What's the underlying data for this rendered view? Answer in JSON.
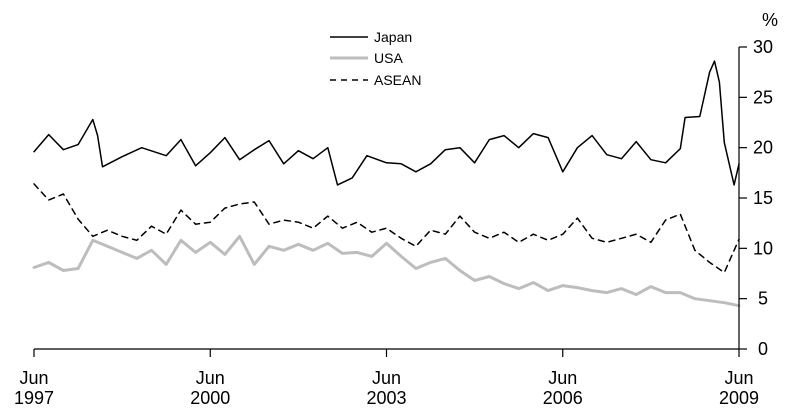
{
  "chart_data": {
    "type": "line",
    "title": "",
    "xlabel": "",
    "ylabel": "%",
    "ylim": [
      0,
      30
    ],
    "x_ticks": [
      {
        "date": "1997-06",
        "line1": "Jun",
        "line2": "1997"
      },
      {
        "date": "2000-06",
        "line1": "Jun",
        "line2": "2000"
      },
      {
        "date": "2003-06",
        "line1": "Jun",
        "line2": "2003"
      },
      {
        "date": "2006-06",
        "line1": "Jun",
        "line2": "2006"
      },
      {
        "date": "2009-06",
        "line1": "Jun",
        "line2": "2009"
      }
    ],
    "y_ticks": [
      "0",
      "5",
      "10",
      "15",
      "20",
      "25",
      "30"
    ],
    "x_start": "1997-06",
    "x_end": "2009-06",
    "grid": false,
    "legend_position": "top-center",
    "series": [
      {
        "name": "Japan",
        "style": "solid",
        "color": "#000000",
        "points": [
          [
            "1997-06",
            19.6
          ],
          [
            "1997-09",
            21.3
          ],
          [
            "1997-12",
            19.8
          ],
          [
            "1998-03",
            20.3
          ],
          [
            "1998-06",
            22.8
          ],
          [
            "1998-07",
            21.2
          ],
          [
            "1998-08",
            18.1
          ],
          [
            "1998-12",
            19.1
          ],
          [
            "1999-04",
            20.0
          ],
          [
            "1999-09",
            19.2
          ],
          [
            "1999-12",
            20.8
          ],
          [
            "2000-03",
            18.2
          ],
          [
            "2000-06",
            19.5
          ],
          [
            "2000-09",
            21.0
          ],
          [
            "2000-12",
            18.8
          ],
          [
            "2001-03",
            19.8
          ],
          [
            "2001-06",
            20.7
          ],
          [
            "2001-09",
            18.4
          ],
          [
            "2001-12",
            19.7
          ],
          [
            "2002-03",
            18.9
          ],
          [
            "2002-06",
            20.0
          ],
          [
            "2002-08",
            16.3
          ],
          [
            "2002-11",
            17.0
          ],
          [
            "2003-02",
            19.2
          ],
          [
            "2003-06",
            18.5
          ],
          [
            "2003-09",
            18.4
          ],
          [
            "2003-12",
            17.6
          ],
          [
            "2004-03",
            18.4
          ],
          [
            "2004-06",
            19.8
          ],
          [
            "2004-09",
            20.0
          ],
          [
            "2004-12",
            18.5
          ],
          [
            "2005-03",
            20.8
          ],
          [
            "2005-06",
            21.2
          ],
          [
            "2005-09",
            20.0
          ],
          [
            "2005-12",
            21.4
          ],
          [
            "2006-03",
            21.0
          ],
          [
            "2006-06",
            17.6
          ],
          [
            "2006-09",
            20.0
          ],
          [
            "2006-12",
            21.2
          ],
          [
            "2007-03",
            19.3
          ],
          [
            "2007-06",
            18.9
          ],
          [
            "2007-09",
            20.6
          ],
          [
            "2007-12",
            18.8
          ],
          [
            "2008-03",
            18.5
          ],
          [
            "2008-06",
            19.9
          ],
          [
            "2008-07",
            23.0
          ],
          [
            "2008-10",
            23.1
          ],
          [
            "2008-12",
            27.5
          ],
          [
            "2009-01",
            28.6
          ],
          [
            "2009-02",
            26.5
          ],
          [
            "2009-03",
            20.5
          ],
          [
            "2009-05",
            16.3
          ],
          [
            "2009-06",
            18.4
          ]
        ]
      },
      {
        "name": "USA",
        "style": "solid",
        "color": "#bdbdbd",
        "points": [
          [
            "1997-06",
            8.1
          ],
          [
            "1997-09",
            8.6
          ],
          [
            "1997-12",
            7.8
          ],
          [
            "1998-03",
            8.0
          ],
          [
            "1998-06",
            10.8
          ],
          [
            "1998-09",
            10.2
          ],
          [
            "1998-12",
            9.6
          ],
          [
            "1999-03",
            9.0
          ],
          [
            "1999-06",
            9.8
          ],
          [
            "1999-09",
            8.4
          ],
          [
            "1999-12",
            10.8
          ],
          [
            "2000-03",
            9.6
          ],
          [
            "2000-06",
            10.6
          ],
          [
            "2000-09",
            9.4
          ],
          [
            "2000-12",
            11.2
          ],
          [
            "2001-03",
            8.4
          ],
          [
            "2001-06",
            10.2
          ],
          [
            "2001-09",
            9.8
          ],
          [
            "2001-12",
            10.4
          ],
          [
            "2002-03",
            9.8
          ],
          [
            "2002-06",
            10.5
          ],
          [
            "2002-09",
            9.5
          ],
          [
            "2002-12",
            9.6
          ],
          [
            "2003-03",
            9.2
          ],
          [
            "2003-06",
            10.5
          ],
          [
            "2003-09",
            9.2
          ],
          [
            "2003-12",
            8.0
          ],
          [
            "2004-03",
            8.6
          ],
          [
            "2004-06",
            9.0
          ],
          [
            "2004-09",
            7.8
          ],
          [
            "2004-12",
            6.8
          ],
          [
            "2005-03",
            7.2
          ],
          [
            "2005-06",
            6.5
          ],
          [
            "2005-09",
            6.0
          ],
          [
            "2005-12",
            6.6
          ],
          [
            "2006-03",
            5.8
          ],
          [
            "2006-06",
            6.3
          ],
          [
            "2006-09",
            6.1
          ],
          [
            "2006-12",
            5.8
          ],
          [
            "2007-03",
            5.6
          ],
          [
            "2007-06",
            6.0
          ],
          [
            "2007-09",
            5.4
          ],
          [
            "2007-12",
            6.2
          ],
          [
            "2008-03",
            5.6
          ],
          [
            "2008-06",
            5.6
          ],
          [
            "2008-09",
            5.0
          ],
          [
            "2008-12",
            4.8
          ],
          [
            "2009-03",
            4.6
          ],
          [
            "2009-06",
            4.3
          ]
        ]
      },
      {
        "name": "ASEAN",
        "style": "dashed",
        "color": "#000000",
        "points": [
          [
            "1997-06",
            16.4
          ],
          [
            "1997-09",
            14.8
          ],
          [
            "1997-12",
            15.4
          ],
          [
            "1998-03",
            12.9
          ],
          [
            "1998-06",
            11.2
          ],
          [
            "1998-09",
            11.8
          ],
          [
            "1998-12",
            11.2
          ],
          [
            "1999-03",
            10.8
          ],
          [
            "1999-06",
            12.2
          ],
          [
            "1999-09",
            11.4
          ],
          [
            "1999-12",
            13.8
          ],
          [
            "2000-03",
            12.4
          ],
          [
            "2000-06",
            12.6
          ],
          [
            "2000-09",
            14.0
          ],
          [
            "2000-12",
            14.4
          ],
          [
            "2001-03",
            14.6
          ],
          [
            "2001-06",
            12.4
          ],
          [
            "2001-09",
            12.8
          ],
          [
            "2001-12",
            12.6
          ],
          [
            "2002-03",
            12.0
          ],
          [
            "2002-06",
            13.2
          ],
          [
            "2002-09",
            12.0
          ],
          [
            "2002-12",
            12.6
          ],
          [
            "2003-03",
            11.6
          ],
          [
            "2003-06",
            12.0
          ],
          [
            "2003-09",
            11.0
          ],
          [
            "2003-12",
            10.2
          ],
          [
            "2004-03",
            11.8
          ],
          [
            "2004-06",
            11.4
          ],
          [
            "2004-09",
            13.2
          ],
          [
            "2004-12",
            11.6
          ],
          [
            "2005-03",
            11.0
          ],
          [
            "2005-06",
            11.6
          ],
          [
            "2005-09",
            10.6
          ],
          [
            "2005-12",
            11.4
          ],
          [
            "2006-03",
            10.8
          ],
          [
            "2006-06",
            11.4
          ],
          [
            "2006-09",
            13.0
          ],
          [
            "2006-12",
            11.0
          ],
          [
            "2007-03",
            10.6
          ],
          [
            "2007-06",
            11.0
          ],
          [
            "2007-09",
            11.4
          ],
          [
            "2007-12",
            10.6
          ],
          [
            "2008-03",
            12.8
          ],
          [
            "2008-06",
            13.4
          ],
          [
            "2008-09",
            9.8
          ],
          [
            "2008-12",
            8.6
          ],
          [
            "2009-03",
            7.6
          ],
          [
            "2009-06",
            10.9
          ]
        ]
      }
    ]
  }
}
